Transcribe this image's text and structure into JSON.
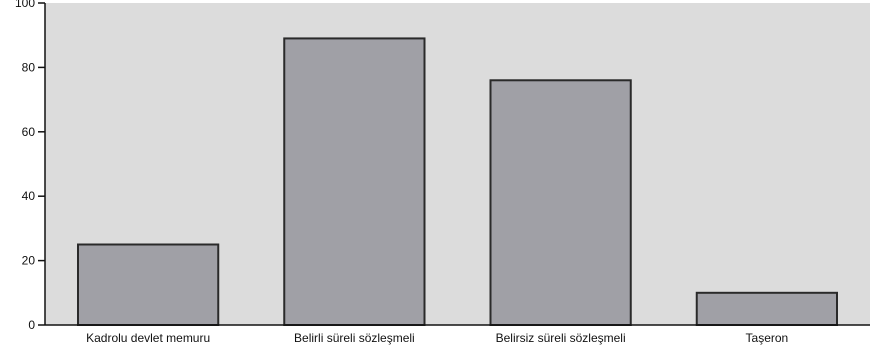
{
  "chart_data": {
    "type": "bar",
    "categories": [
      "Kadrolu devlet memuru",
      "Belirli süreli sözleşmeli",
      "Belirsiz süreli sözleşmeli",
      "Taşeron"
    ],
    "values": [
      25,
      89,
      76,
      10
    ],
    "ylim": [
      0,
      100
    ],
    "yticks": [
      0,
      20,
      40,
      60,
      80,
      100
    ],
    "title": "",
    "xlabel": "",
    "ylabel": "",
    "grid": false,
    "legend": "none",
    "colors": {
      "plot_background": "#dcdcdc",
      "bar_fill": "#a0a0a6",
      "bar_stroke": "#2a2a2a",
      "axis": "#111111"
    }
  }
}
